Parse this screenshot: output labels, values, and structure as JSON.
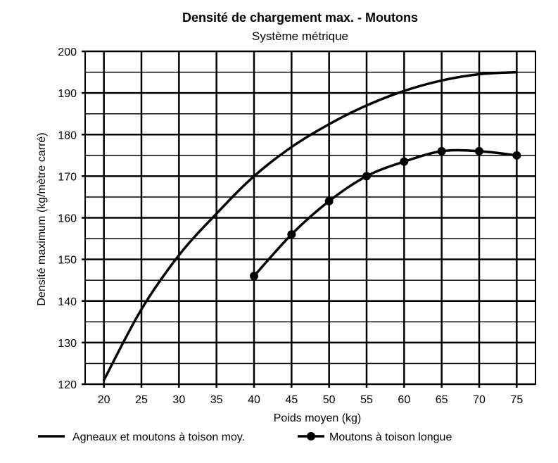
{
  "chart_data": {
    "type": "line",
    "title": "Densité de chargement max. - Moutons",
    "subtitle": "Système métrique",
    "xlabel": "Poids moyen (kg)",
    "ylabel": "Densité maximum (kg/mètre carré)",
    "xlim": [
      17.5,
      77.5
    ],
    "ylim": [
      120,
      200
    ],
    "x_ticks": [
      20,
      25,
      30,
      35,
      40,
      45,
      50,
      55,
      60,
      65,
      70,
      75
    ],
    "y_ticks": [
      120,
      130,
      140,
      150,
      160,
      170,
      180,
      190,
      200
    ],
    "grid": true,
    "legend_position": "bottom",
    "series": [
      {
        "name": "Agneaux et moutons à toison moy.",
        "markers": false,
        "x": [
          20,
          25,
          30,
          35,
          40,
          45,
          50,
          55,
          60,
          65,
          70,
          75
        ],
        "values": [
          121,
          138,
          151,
          161,
          170,
          177,
          182.5,
          187,
          190.5,
          193,
          194.5,
          195
        ]
      },
      {
        "name": "Moutons à toison longue",
        "markers": true,
        "x": [
          40,
          45,
          50,
          55,
          60,
          65,
          70,
          75
        ],
        "values": [
          146,
          156,
          164,
          170,
          173.5,
          176,
          176,
          175
        ]
      }
    ]
  }
}
